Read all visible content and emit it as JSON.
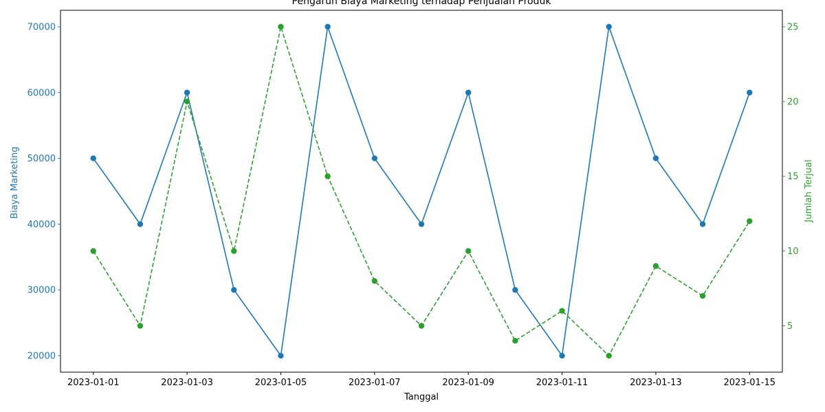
{
  "chart_data": {
    "type": "line",
    "title": "Pengaruh Biaya Marketing terhadap Penjualan Produk",
    "xlabel": "Tanggal",
    "x": [
      "2023-01-01",
      "2023-01-02",
      "2023-01-03",
      "2023-01-04",
      "2023-01-05",
      "2023-01-06",
      "2023-01-07",
      "2023-01-08",
      "2023-01-09",
      "2023-01-10",
      "2023-01-11",
      "2023-01-12",
      "2023-01-13",
      "2023-01-14",
      "2023-01-15"
    ],
    "x_ticks": [
      "2023-01-01",
      "2023-01-03",
      "2023-01-05",
      "2023-01-07",
      "2023-01-09",
      "2023-01-11",
      "2023-01-13",
      "2023-01-15"
    ],
    "series": [
      {
        "axis": "left",
        "ylabel": "Biaya Marketing",
        "color": "#1f77b4",
        "line_style": "solid",
        "marker": "circle",
        "values": [
          50000,
          40000,
          60000,
          30000,
          20000,
          70000,
          50000,
          40000,
          60000,
          30000,
          20000,
          70000,
          50000,
          40000,
          60000
        ],
        "ylim": [
          17500,
          72500
        ],
        "yticks": [
          20000,
          30000,
          40000,
          50000,
          60000,
          70000
        ]
      },
      {
        "axis": "right",
        "ylabel": "Jumlah Terjual",
        "color": "#2ca02c",
        "line_style": "dashed",
        "marker": "circle",
        "values": [
          10,
          5,
          20,
          10,
          25,
          15,
          8,
          5,
          10,
          4,
          6,
          3,
          9,
          7,
          12
        ],
        "ylim": [
          1.9,
          26.1
        ],
        "yticks": [
          5,
          10,
          15,
          20,
          25
        ]
      }
    ],
    "grid": false,
    "legend": "none"
  }
}
